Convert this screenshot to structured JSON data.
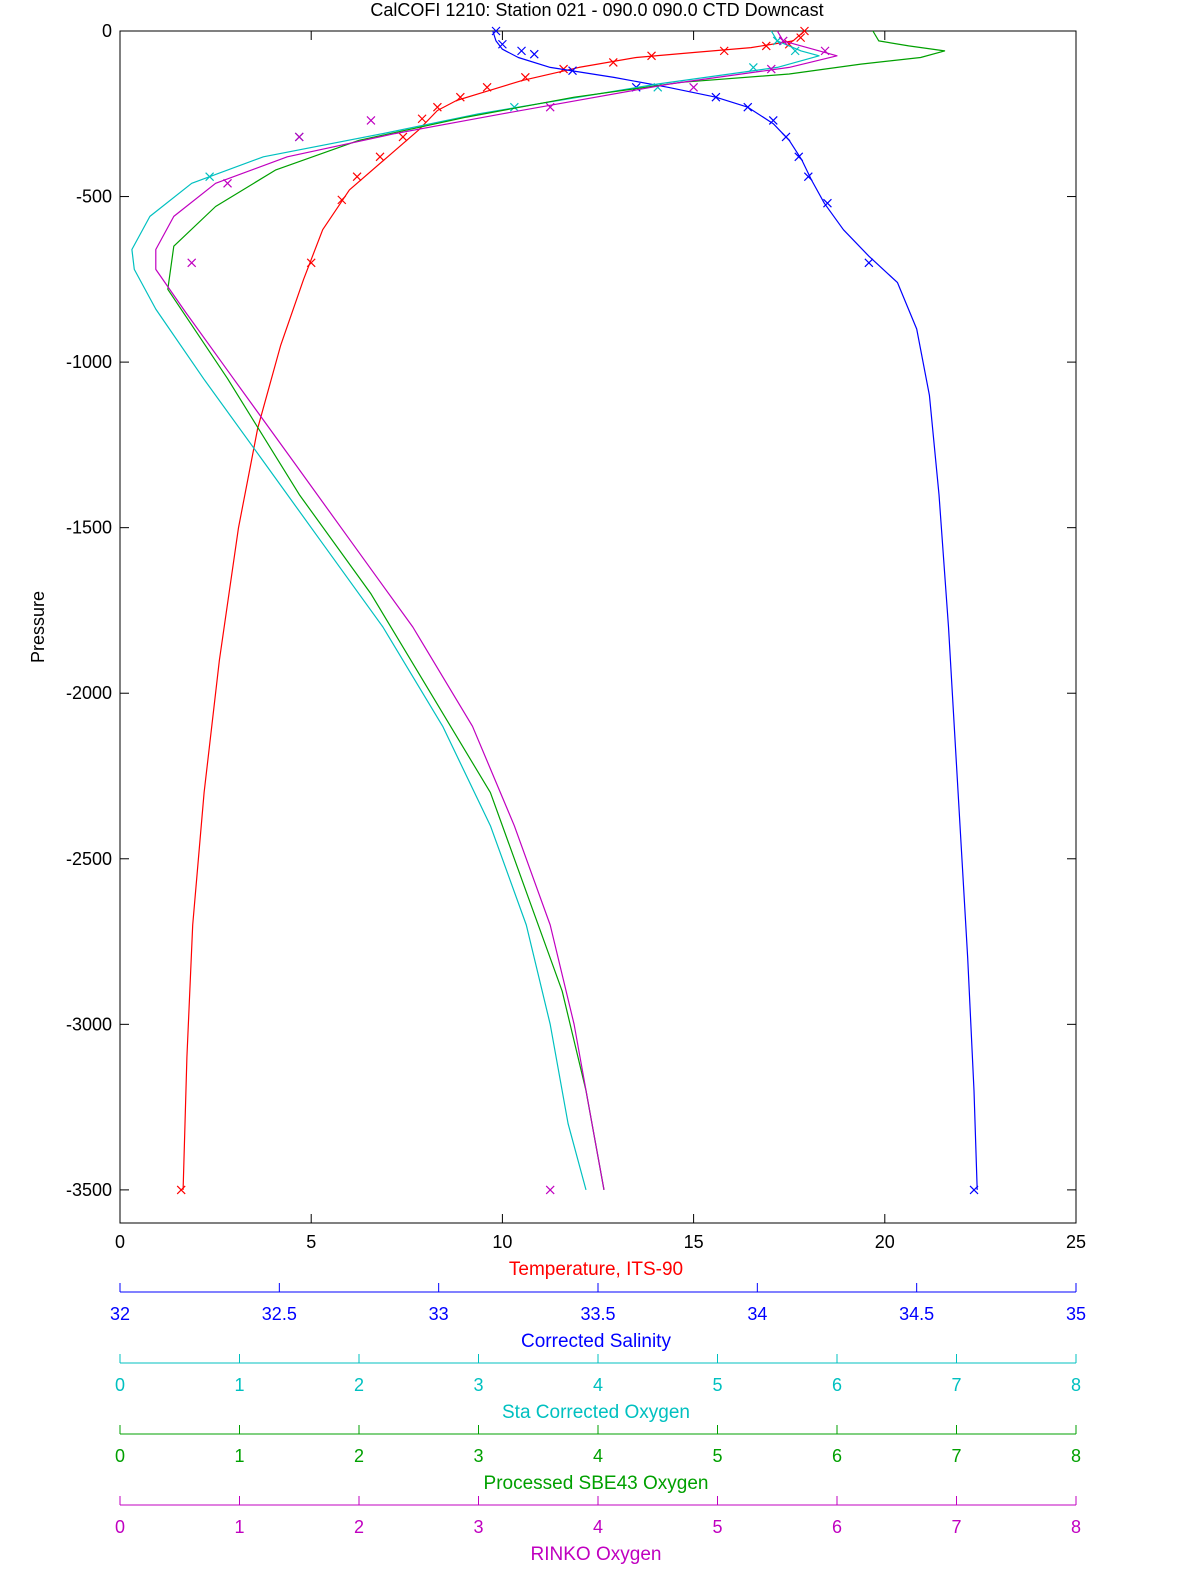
{
  "chart_data": {
    "type": "line",
    "title": "CalCOFI 1210: Station 021 - 090.0 090.0 CTD Downcast",
    "ylabel": "Pressure",
    "ylim": [
      -3600,
      0
    ],
    "y_ticks": [
      0,
      -500,
      -1000,
      -1500,
      -2000,
      -2500,
      -3000,
      -3500
    ],
    "grid": false,
    "axes": [
      {
        "label": "Temperature, ITS-90",
        "color": "#ff0000",
        "min": 0,
        "max": 25,
        "ticks": [
          0,
          5,
          10,
          15,
          20,
          25
        ]
      },
      {
        "label": "Corrected Salinity",
        "color": "#0000ff",
        "min": 32,
        "max": 35,
        "ticks": [
          32,
          32.5,
          33,
          33.5,
          34,
          34.5,
          35
        ]
      },
      {
        "label": "Sta Corrected Oxygen",
        "color": "#00c0c0",
        "min": 0,
        "max": 8,
        "ticks": [
          0,
          1,
          2,
          3,
          4,
          5,
          6,
          7,
          8
        ]
      },
      {
        "label": "Processed SBE43 Oxygen",
        "color": "#00a000",
        "min": 0,
        "max": 8,
        "ticks": [
          0,
          1,
          2,
          3,
          4,
          5,
          6,
          7,
          8
        ]
      },
      {
        "label": "RINKO Oxygen",
        "color": "#c000c0",
        "min": 0,
        "max": 8,
        "ticks": [
          0,
          1,
          2,
          3,
          4,
          5,
          6,
          7,
          8
        ]
      }
    ],
    "series": [
      {
        "axis": 0,
        "color": "#ff0000",
        "points": [
          [
            17.9,
            0
          ],
          [
            17.6,
            -30
          ],
          [
            16.5,
            -50
          ],
          [
            15.0,
            -65
          ],
          [
            13.5,
            -80
          ],
          [
            12.0,
            -110
          ],
          [
            10.5,
            -150
          ],
          [
            9.5,
            -185
          ],
          [
            8.8,
            -210
          ],
          [
            8.3,
            -240
          ],
          [
            7.8,
            -300
          ],
          [
            7.0,
            -380
          ],
          [
            6.0,
            -480
          ],
          [
            5.3,
            -600
          ],
          [
            4.8,
            -750
          ],
          [
            4.2,
            -950
          ],
          [
            3.6,
            -1200
          ],
          [
            3.1,
            -1500
          ],
          [
            2.6,
            -1900
          ],
          [
            2.2,
            -2300
          ],
          [
            1.9,
            -2700
          ],
          [
            1.75,
            -3100
          ],
          [
            1.65,
            -3500
          ]
        ],
        "markers": [
          [
            17.9,
            0
          ],
          [
            17.8,
            -20
          ],
          [
            17.5,
            -40
          ],
          [
            16.9,
            -45
          ],
          [
            15.8,
            -60
          ],
          [
            13.9,
            -75
          ],
          [
            12.9,
            -95
          ],
          [
            11.6,
            -115
          ],
          [
            10.6,
            -140
          ],
          [
            9.6,
            -170
          ],
          [
            8.9,
            -200
          ],
          [
            8.3,
            -230
          ],
          [
            7.9,
            -265
          ],
          [
            7.4,
            -320
          ],
          [
            6.8,
            -380
          ],
          [
            6.2,
            -440
          ],
          [
            5.8,
            -510
          ],
          [
            5.0,
            -700
          ],
          [
            1.6,
            -3500
          ]
        ]
      },
      {
        "axis": 1,
        "color": "#0000ff",
        "points": [
          [
            33.17,
            0
          ],
          [
            33.18,
            -30
          ],
          [
            33.2,
            -55
          ],
          [
            33.25,
            -80
          ],
          [
            33.35,
            -110
          ],
          [
            33.55,
            -140
          ],
          [
            33.72,
            -170
          ],
          [
            33.87,
            -200
          ],
          [
            33.97,
            -230
          ],
          [
            34.05,
            -280
          ],
          [
            34.1,
            -330
          ],
          [
            34.14,
            -390
          ],
          [
            34.17,
            -450
          ],
          [
            34.21,
            -520
          ],
          [
            34.27,
            -600
          ],
          [
            34.35,
            -680
          ],
          [
            34.44,
            -760
          ],
          [
            34.5,
            -900
          ],
          [
            34.54,
            -1100
          ],
          [
            34.57,
            -1400
          ],
          [
            34.6,
            -1800
          ],
          [
            34.63,
            -2300
          ],
          [
            34.66,
            -2800
          ],
          [
            34.68,
            -3200
          ],
          [
            34.69,
            -3500
          ]
        ],
        "markers": [
          [
            33.18,
            0
          ],
          [
            33.2,
            -40
          ],
          [
            33.26,
            -60
          ],
          [
            33.3,
            -70
          ],
          [
            33.42,
            -120
          ],
          [
            33.62,
            -170
          ],
          [
            33.87,
            -200
          ],
          [
            33.97,
            -230
          ],
          [
            34.05,
            -270
          ],
          [
            34.09,
            -320
          ],
          [
            34.13,
            -380
          ],
          [
            34.16,
            -440
          ],
          [
            34.22,
            -520
          ],
          [
            34.35,
            -700
          ],
          [
            34.68,
            -3500
          ]
        ]
      },
      {
        "axis": 2,
        "color": "#00c0c0",
        "points": [
          [
            5.45,
            0
          ],
          [
            5.5,
            -30
          ],
          [
            5.7,
            -60
          ],
          [
            5.85,
            -75
          ],
          [
            5.5,
            -110
          ],
          [
            4.5,
            -160
          ],
          [
            3.0,
            -250
          ],
          [
            2.2,
            -310
          ],
          [
            1.2,
            -380
          ],
          [
            0.6,
            -460
          ],
          [
            0.25,
            -560
          ],
          [
            0.1,
            -660
          ],
          [
            0.12,
            -720
          ],
          [
            0.3,
            -840
          ],
          [
            0.7,
            -1050
          ],
          [
            1.2,
            -1300
          ],
          [
            1.7,
            -1550
          ],
          [
            2.2,
            -1800
          ],
          [
            2.7,
            -2100
          ],
          [
            3.1,
            -2400
          ],
          [
            3.4,
            -2700
          ],
          [
            3.6,
            -3000
          ],
          [
            3.75,
            -3300
          ],
          [
            3.9,
            -3500
          ]
        ],
        "markers": [
          [
            5.5,
            -30
          ],
          [
            5.65,
            -60
          ],
          [
            5.3,
            -110
          ],
          [
            4.5,
            -170
          ],
          [
            3.3,
            -230
          ],
          [
            1.5,
            -320
          ],
          [
            0.75,
            -440
          ]
        ]
      },
      {
        "axis": 3,
        "color": "#00a000",
        "points": [
          [
            6.3,
            0
          ],
          [
            6.35,
            -30
          ],
          [
            6.6,
            -45
          ],
          [
            6.9,
            -60
          ],
          [
            6.7,
            -80
          ],
          [
            6.2,
            -100
          ],
          [
            5.6,
            -130
          ],
          [
            4.7,
            -155
          ],
          [
            3.8,
            -200
          ],
          [
            2.9,
            -260
          ],
          [
            2.0,
            -330
          ],
          [
            1.3,
            -420
          ],
          [
            0.8,
            -530
          ],
          [
            0.45,
            -650
          ],
          [
            0.4,
            -780
          ],
          [
            0.9,
            -1050
          ],
          [
            1.5,
            -1400
          ],
          [
            2.1,
            -1700
          ],
          [
            2.6,
            -2000
          ],
          [
            3.1,
            -2300
          ],
          [
            3.4,
            -2600
          ],
          [
            3.7,
            -2900
          ],
          [
            3.9,
            -3200
          ],
          [
            4.05,
            -3500
          ]
        ],
        "markers": []
      },
      {
        "axis": 4,
        "color": "#c000c0",
        "points": [
          [
            5.5,
            0
          ],
          [
            5.55,
            -30
          ],
          [
            5.75,
            -50
          ],
          [
            6.0,
            -75
          ],
          [
            5.6,
            -110
          ],
          [
            4.6,
            -160
          ],
          [
            3.2,
            -250
          ],
          [
            2.3,
            -310
          ],
          [
            1.4,
            -380
          ],
          [
            0.8,
            -460
          ],
          [
            0.45,
            -560
          ],
          [
            0.3,
            -660
          ],
          [
            0.3,
            -720
          ],
          [
            0.55,
            -850
          ],
          [
            0.95,
            -1050
          ],
          [
            1.45,
            -1300
          ],
          [
            1.95,
            -1550
          ],
          [
            2.45,
            -1800
          ],
          [
            2.95,
            -2100
          ],
          [
            3.3,
            -2400
          ],
          [
            3.6,
            -2700
          ],
          [
            3.8,
            -3000
          ],
          [
            3.95,
            -3300
          ],
          [
            4.05,
            -3500
          ]
        ],
        "markers": [
          [
            5.55,
            -30
          ],
          [
            5.9,
            -60
          ],
          [
            5.45,
            -115
          ],
          [
            4.8,
            -170
          ],
          [
            3.6,
            -230
          ],
          [
            2.1,
            -270
          ],
          [
            1.5,
            -320
          ],
          [
            0.9,
            -460
          ],
          [
            0.6,
            -700
          ],
          [
            3.6,
            -3500
          ]
        ]
      }
    ]
  }
}
